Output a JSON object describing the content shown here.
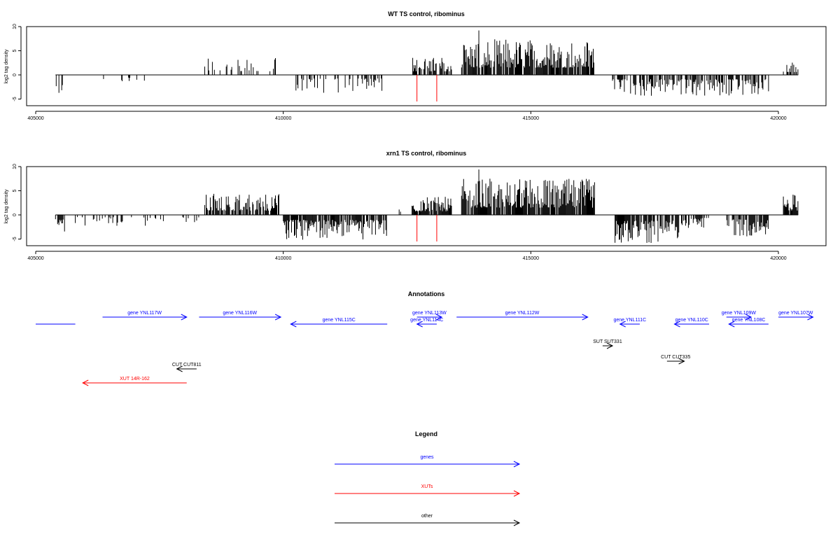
{
  "chart_data": [
    {
      "type": "bar",
      "title": "WT TS control, ribominus",
      "ylabel": "log2 tag density",
      "ylim": [
        -6,
        10
      ],
      "xlim": [
        405000,
        420500
      ],
      "yticks": [
        "-5",
        "0",
        "5",
        "10"
      ],
      "xticks": [
        "405000",
        "410000",
        "415000",
        "420000"
      ],
      "signal_range": [
        405400,
        420400
      ],
      "red_markers": [
        412700,
        413100
      ],
      "segments": [
        {
          "x": [
            405400,
            405550
          ],
          "level": -3,
          "density": 0.35
        },
        {
          "x": [
            406300,
            407300
          ],
          "level": -1.5,
          "density": 0.15
        },
        {
          "x": [
            408400,
            409950
          ],
          "level": 2.5,
          "density": 0.3
        },
        {
          "x": [
            410200,
            412000
          ],
          "level": -2.5,
          "density": 0.35
        },
        {
          "x": [
            412600,
            413400
          ],
          "level": 2.5,
          "density": 0.6
        },
        {
          "x": [
            413600,
            416300
          ],
          "level": 5,
          "density": 0.85
        },
        {
          "x": [
            416650,
            419800
          ],
          "level": -3,
          "density": 0.6
        },
        {
          "x": [
            420100,
            420400
          ],
          "level": 2,
          "density": 0.5
        }
      ],
      "peak": {
        "x": 413950,
        "value": 9.2
      }
    },
    {
      "type": "bar",
      "title": "xrn1 TS control, ribominus",
      "ylabel": "log2 tag density",
      "ylim": [
        -6,
        10
      ],
      "xlim": [
        405000,
        420500
      ],
      "yticks": [
        "-5",
        "0",
        "5",
        "10"
      ],
      "xticks": [
        "405000",
        "410000",
        "415000",
        "420000"
      ],
      "signal_range": [
        405400,
        420400
      ],
      "red_markers": [
        412700,
        413100
      ],
      "segments": [
        {
          "x": [
            405400,
            405600
          ],
          "level": -3,
          "density": 0.7
        },
        {
          "x": [
            405800,
            408300
          ],
          "level": -1.5,
          "density": 0.25
        },
        {
          "x": [
            408400,
            409950
          ],
          "level": 3,
          "density": 0.75
        },
        {
          "x": [
            410000,
            412100
          ],
          "level": -3.5,
          "density": 0.85
        },
        {
          "x": [
            412200,
            412400
          ],
          "level": 1,
          "density": 0.3
        },
        {
          "x": [
            412600,
            413400
          ],
          "level": 2.5,
          "density": 0.85
        },
        {
          "x": [
            413600,
            416300
          ],
          "level": 5,
          "density": 0.9
        },
        {
          "x": [
            416700,
            418000
          ],
          "level": -4,
          "density": 0.85
        },
        {
          "x": [
            418000,
            418600
          ],
          "level": -2,
          "density": 0.6
        },
        {
          "x": [
            418900,
            419800
          ],
          "level": -3,
          "density": 0.75
        },
        {
          "x": [
            420100,
            420400
          ],
          "level": 3,
          "density": 0.8
        }
      ],
      "peak": {
        "x": 413950,
        "value": 9.4
      }
    }
  ],
  "annotations": {
    "title": "Annotations",
    "features": [
      {
        "label": "",
        "type": "gene",
        "start": 405000,
        "end": 405800,
        "strand": "none",
        "row": 1
      },
      {
        "label": "gene YNL117W",
        "type": "gene",
        "start": 406350,
        "end": 408050,
        "strand": "+",
        "row": 0
      },
      {
        "label": "gene YNL116W",
        "type": "gene",
        "start": 408300,
        "end": 409950,
        "strand": "+",
        "row": 0
      },
      {
        "label": "gene YNL115C",
        "type": "gene",
        "start": 410150,
        "end": 412100,
        "strand": "-",
        "row": 1
      },
      {
        "label": "gene YNL113W",
        "type": "gene",
        "start": 412700,
        "end": 413200,
        "strand": "+",
        "row": 0
      },
      {
        "label": "gene YNL114C",
        "type": "gene",
        "start": 412700,
        "end": 413100,
        "strand": "-",
        "row": 1
      },
      {
        "label": "gene YNL112W",
        "type": "gene",
        "start": 413500,
        "end": 416150,
        "strand": "+",
        "row": 0
      },
      {
        "label": "gene YNL111C",
        "type": "gene",
        "start": 416800,
        "end": 417200,
        "strand": "-",
        "row": 1
      },
      {
        "label": "gene YNL110C",
        "type": "gene",
        "start": 417900,
        "end": 418600,
        "strand": "-",
        "row": 1
      },
      {
        "label": "gene YNL109W",
        "type": "gene",
        "start": 418950,
        "end": 419450,
        "strand": "+",
        "row": 0
      },
      {
        "label": "gene YNL108C",
        "type": "gene",
        "start": 419000,
        "end": 419800,
        "strand": "-",
        "row": 1
      },
      {
        "label": "gene YNL107W",
        "type": "gene",
        "start": 420000,
        "end": 420700,
        "strand": "+",
        "row": 0
      },
      {
        "label": "SUT SUT331",
        "type": "other",
        "start": 416450,
        "end": 416650,
        "strand": "+",
        "row": 3
      },
      {
        "label": "CUT CUT335",
        "type": "other",
        "start": 417750,
        "end": 418100,
        "strand": "+",
        "row": 5
      },
      {
        "label": "CUT CUT811",
        "type": "other",
        "start": 407850,
        "end": 408250,
        "strand": "-",
        "row": 6
      },
      {
        "label": "XUT 14R-162",
        "type": "XUT",
        "start": 405950,
        "end": 408050,
        "strand": "-",
        "row": 8
      }
    ]
  },
  "legend": {
    "title": "Legend",
    "items": [
      {
        "label": "genes",
        "color": "#0000ff"
      },
      {
        "label": "XUTs",
        "color": "#ff0000"
      },
      {
        "label": "other",
        "color": "#000000"
      }
    ]
  },
  "colors": {
    "gene": "#0000ff",
    "XUT": "#ff0000",
    "other": "#000000",
    "signal": "#000000",
    "marker": "#ff0000"
  }
}
